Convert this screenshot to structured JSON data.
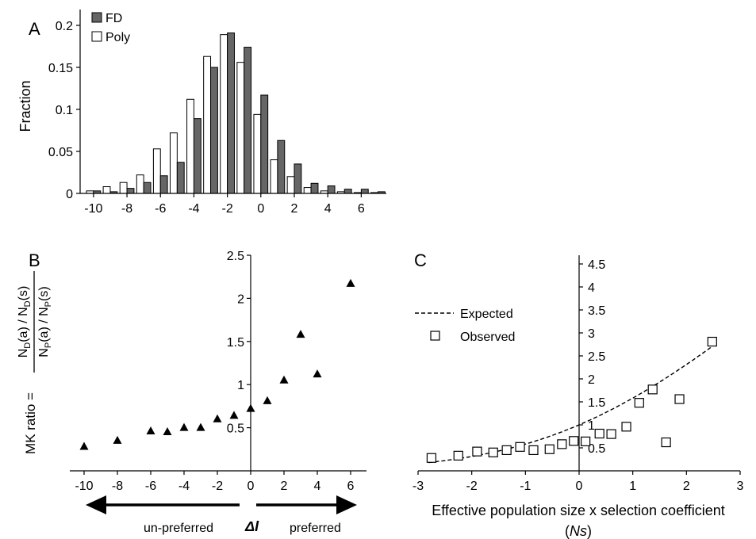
{
  "chart_data": [
    {
      "panel": "A",
      "type": "bar",
      "ylabel": "Fraction",
      "xlim": [
        -10.8,
        7.5
      ],
      "ylim": [
        0,
        0.2
      ],
      "xticks": [
        -10,
        -8,
        -6,
        -4,
        -2,
        0,
        2,
        4,
        6
      ],
      "xtick_labels": [
        "-10",
        "-8",
        "-6",
        "-4",
        "-2",
        "0",
        "2",
        "4",
        "6"
      ],
      "yticks": [
        0,
        0.05,
        0.1,
        0.15,
        0.2
      ],
      "ytick_labels": [
        "0",
        "0.05",
        "0.1",
        "0.15",
        "0.2"
      ],
      "legend_position": "top-left",
      "series": [
        {
          "name": "FD",
          "color": "#666666",
          "x": [
            -10,
            -9,
            -8,
            -7,
            -6,
            -5,
            -4,
            -3,
            -2,
            -1,
            0,
            1,
            2,
            3,
            4,
            5,
            6,
            7
          ],
          "values": [
            0.003,
            0.002,
            0.006,
            0.013,
            0.021,
            0.037,
            0.089,
            0.15,
            0.191,
            0.174,
            0.117,
            0.063,
            0.035,
            0.012,
            0.009,
            0.005,
            0.005,
            0.002
          ]
        },
        {
          "name": "Poly",
          "color": "#ffffff",
          "x": [
            -10,
            -9,
            -8,
            -7,
            -6,
            -5,
            -4,
            -3,
            -2,
            -1,
            0,
            1,
            2,
            3,
            4,
            5,
            6,
            7
          ],
          "values": [
            0.003,
            0.008,
            0.013,
            0.022,
            0.053,
            0.072,
            0.112,
            0.163,
            0.189,
            0.156,
            0.094,
            0.04,
            0.02,
            0.007,
            0.003,
            0.002,
            0.001,
            0.001
          ]
        }
      ]
    },
    {
      "panel": "B",
      "type": "scatter",
      "ylabel_prefix": "MK ratio =",
      "ylabel_numerator": "N_D(a) / N_D(s)",
      "ylabel_denominator": "N_P(a) / N_P(s)",
      "xlim": [
        -11,
        7
      ],
      "ylim": [
        0,
        2.5
      ],
      "xticks": [
        -10,
        -8,
        -6,
        -4,
        -2,
        0,
        2,
        4,
        6
      ],
      "xtick_labels": [
        "-10",
        "-8",
        "-6",
        "-4",
        "-2",
        "0",
        "2",
        "4",
        "6"
      ],
      "yticks": [
        0.5,
        1,
        1.5,
        2,
        2.5
      ],
      "ytick_labels": [
        "0.5",
        "1",
        "1.5",
        "2",
        "2.5"
      ],
      "marker": "triangle",
      "points": [
        {
          "x": -10,
          "y": 0.28
        },
        {
          "x": -8,
          "y": 0.35
        },
        {
          "x": -6,
          "y": 0.46
        },
        {
          "x": -5,
          "y": 0.45
        },
        {
          "x": -4,
          "y": 0.5
        },
        {
          "x": -3,
          "y": 0.5
        },
        {
          "x": -2,
          "y": 0.6
        },
        {
          "x": -1,
          "y": 0.64
        },
        {
          "x": 0,
          "y": 0.72
        },
        {
          "x": 1,
          "y": 0.81
        },
        {
          "x": 2,
          "y": 1.05
        },
        {
          "x": 3,
          "y": 1.58
        },
        {
          "x": 4,
          "y": 1.12
        },
        {
          "x": 6,
          "y": 2.17
        }
      ],
      "arrow_left_label": "un-preferred",
      "arrow_center_label": "ΔI",
      "arrow_right_label": "preferred"
    },
    {
      "panel": "C",
      "type": "scatter",
      "xlabel": "Effective population size x selection coefficient",
      "xlabel_line2": "(Ns)",
      "xlim": [
        -3,
        3
      ],
      "ylim": [
        0,
        4.5
      ],
      "xticks": [
        -3,
        -2,
        -1,
        0,
        1,
        2,
        3
      ],
      "xtick_labels": [
        "-3",
        "-2",
        "-1",
        "0",
        "1",
        "2",
        "3"
      ],
      "yticks": [
        0.5,
        1,
        1.5,
        2,
        2.5,
        3,
        3.5,
        4,
        4.5
      ],
      "ytick_labels": [
        "0.5",
        "1",
        "1.5",
        "2",
        "2.5",
        "3",
        "3.5",
        "4",
        "4.5"
      ],
      "legend_position": "top-left",
      "expected": {
        "name": "Expected",
        "style": "dashed",
        "xrange": [
          -2.8,
          2.48
        ]
      },
      "observed": {
        "name": "Observed",
        "marker": "open-square",
        "points": [
          {
            "x": -2.75,
            "y": 0.28
          },
          {
            "x": -2.25,
            "y": 0.33
          },
          {
            "x": -1.9,
            "y": 0.42
          },
          {
            "x": -1.6,
            "y": 0.4
          },
          {
            "x": -1.35,
            "y": 0.45
          },
          {
            "x": -1.1,
            "y": 0.52
          },
          {
            "x": -0.85,
            "y": 0.45
          },
          {
            "x": -0.55,
            "y": 0.47
          },
          {
            "x": -0.32,
            "y": 0.58
          },
          {
            "x": -0.1,
            "y": 0.65
          },
          {
            "x": 0.12,
            "y": 0.64
          },
          {
            "x": 0.38,
            "y": 0.81
          },
          {
            "x": 0.6,
            "y": 0.8
          },
          {
            "x": 0.88,
            "y": 0.96
          },
          {
            "x": 1.12,
            "y": 1.48
          },
          {
            "x": 1.37,
            "y": 1.77
          },
          {
            "x": 1.62,
            "y": 0.62
          },
          {
            "x": 1.87,
            "y": 1.56
          },
          {
            "x": 2.48,
            "y": 2.81
          }
        ]
      }
    }
  ],
  "panel_labels": {
    "a": "A",
    "b": "B",
    "c": "C"
  }
}
